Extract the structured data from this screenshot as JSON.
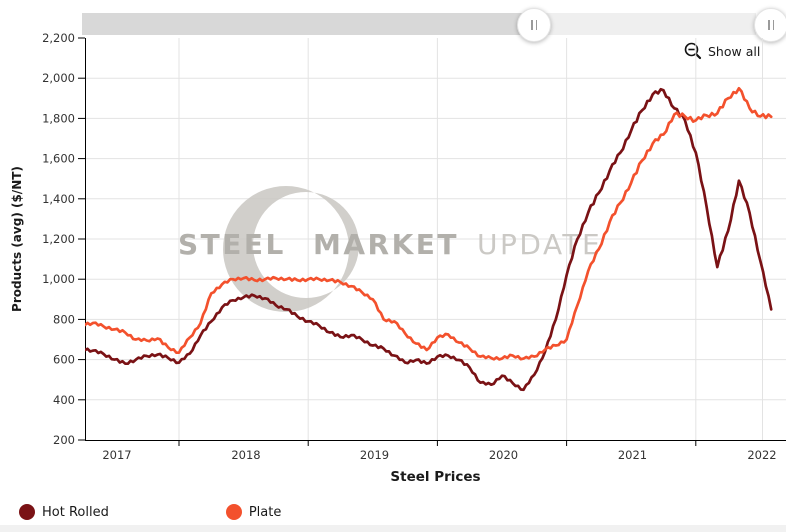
{
  "navigator": {
    "selected_range_note": "range slider with two grip handles",
    "track_dark_color": "#d8d8d8",
    "track_light_color": "#efefef"
  },
  "show_all": {
    "label": "Show all"
  },
  "axes": {
    "y_title": "Products (avg) ($/NT)",
    "x_title": "Steel Prices",
    "y_ticks": [
      "2,200",
      "2,000",
      "1,800",
      "1,600",
      "1,400",
      "1,200",
      "1,000",
      "800",
      "600",
      "400",
      "200"
    ],
    "x_ticks": [
      "2017",
      "2018",
      "2019",
      "2020",
      "2021",
      "2022"
    ]
  },
  "watermark": {
    "word1": "STEEL",
    "word2": "MARKET",
    "word3": "UPDATE"
  },
  "legend": [
    {
      "label": "Hot Rolled",
      "color": "#7a1215"
    },
    {
      "label": "Plate",
      "color": "#f3512d"
    }
  ],
  "colors": {
    "grid": "#e3e3e3",
    "axis": "#000000",
    "tick_label": "#333333",
    "watermark_bold": "#b2b0ab",
    "watermark_light": "#cbc9c5",
    "crescent": "#c9c7c2"
  },
  "chart_data": {
    "type": "line",
    "title": "",
    "xlabel": "Steel Prices",
    "ylabel": "Products (avg) ($/NT)",
    "ylim": [
      200,
      2200
    ],
    "grid": true,
    "legend_position": "bottom-left",
    "x_visible_range": [
      "2017-04",
      "2022-08"
    ],
    "x": [
      "2017-04",
      "2017-05",
      "2017-06",
      "2017-07",
      "2017-08",
      "2017-09",
      "2017-10",
      "2017-11",
      "2017-12",
      "2018-01",
      "2018-02",
      "2018-03",
      "2018-04",
      "2018-05",
      "2018-06",
      "2018-07",
      "2018-08",
      "2018-09",
      "2018-10",
      "2018-11",
      "2018-12",
      "2019-01",
      "2019-02",
      "2019-03",
      "2019-04",
      "2019-05",
      "2019-06",
      "2019-07",
      "2019-08",
      "2019-09",
      "2019-10",
      "2019-11",
      "2019-12",
      "2020-01",
      "2020-02",
      "2020-03",
      "2020-04",
      "2020-05",
      "2020-06",
      "2020-07",
      "2020-08",
      "2020-09",
      "2020-10",
      "2020-11",
      "2020-12",
      "2021-01",
      "2021-02",
      "2021-03",
      "2021-04",
      "2021-05",
      "2021-06",
      "2021-07",
      "2021-08",
      "2021-09",
      "2021-10",
      "2021-11",
      "2021-12",
      "2022-01",
      "2022-02",
      "2022-03",
      "2022-04",
      "2022-05",
      "2022-06",
      "2022-07",
      "2022-08"
    ],
    "series": [
      {
        "name": "Hot Rolled",
        "color": "#7a1215",
        "values": [
          655,
          645,
          628,
          600,
          580,
          600,
          618,
          625,
          608,
          585,
          630,
          720,
          790,
          860,
          895,
          910,
          918,
          905,
          870,
          850,
          815,
          790,
          770,
          735,
          712,
          722,
          700,
          670,
          655,
          620,
          585,
          598,
          580,
          615,
          620,
          598,
          560,
          485,
          475,
          520,
          482,
          450,
          525,
          640,
          800,
          1020,
          1200,
          1330,
          1430,
          1540,
          1630,
          1740,
          1840,
          1920,
          1940,
          1850,
          1790,
          1630,
          1360,
          1060,
          1240,
          1490,
          1330,
          1090,
          850
        ]
      },
      {
        "name": "Plate",
        "color": "#f3512d",
        "values": [
          775,
          782,
          765,
          750,
          735,
          700,
          695,
          705,
          660,
          635,
          710,
          780,
          930,
          975,
          1000,
          1005,
          995,
          1000,
          1005,
          1000,
          995,
          1000,
          1000,
          995,
          985,
          965,
          935,
          900,
          800,
          790,
          730,
          680,
          648,
          710,
          725,
          685,
          655,
          615,
          608,
          605,
          620,
          605,
          615,
          650,
          670,
          700,
          870,
          1040,
          1150,
          1285,
          1380,
          1480,
          1590,
          1675,
          1720,
          1820,
          1810,
          1790,
          1815,
          1825,
          1900,
          1950,
          1850,
          1810,
          1808
        ]
      }
    ]
  }
}
